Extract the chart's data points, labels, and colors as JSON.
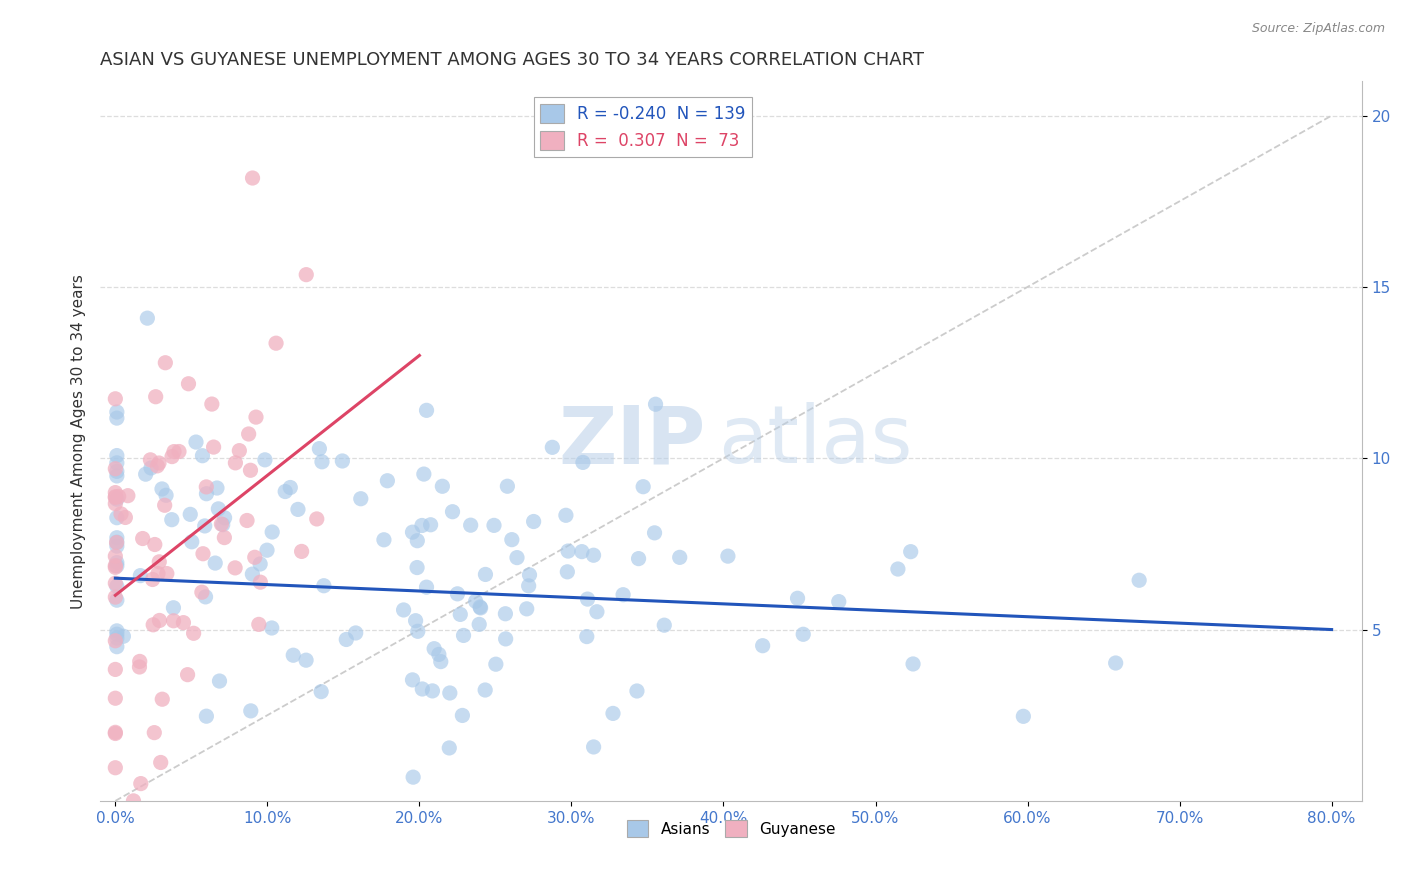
{
  "title": "ASIAN VS GUYANESE UNEMPLOYMENT AMONG AGES 30 TO 34 YEARS CORRELATION CHART",
  "source": "Source: ZipAtlas.com",
  "ylabel": "Unemployment Among Ages 30 to 34 years",
  "watermark_zip": "ZIP",
  "watermark_atlas": "atlas",
  "asian_color": "#a8c8e8",
  "guyanese_color": "#f0b0c0",
  "asian_line_color": "#2255bb",
  "guyanese_line_color": "#dd4466",
  "ref_line_color": "#cccccc",
  "background_color": "#ffffff",
  "grid_color": "#dddddd",
  "title_fontsize": 13,
  "axis_label_fontsize": 11,
  "tick_fontsize": 11,
  "tick_color": "#4477cc",
  "asian_R": -0.24,
  "asian_N": 139,
  "guyanese_R": 0.307,
  "guyanese_N": 73,
  "xlim": [
    -1.0,
    82.0
  ],
  "ylim": [
    0.0,
    21.0
  ],
  "x_ticks": [
    0,
    10,
    20,
    30,
    40,
    50,
    60,
    70,
    80
  ],
  "y_ticks": [
    5,
    10,
    15,
    20
  ],
  "asian_x_mean": 18.0,
  "asian_y_mean": 6.5,
  "asian_x_std": 16.0,
  "asian_y_std": 2.5,
  "guyanese_x_mean": 3.5,
  "guyanese_y_mean": 8.0,
  "guyanese_x_std": 4.5,
  "guyanese_y_std": 3.5,
  "legend_label_asian": "R = -0.240  N = 139",
  "legend_label_guyanese": "R =  0.307  N =  73"
}
